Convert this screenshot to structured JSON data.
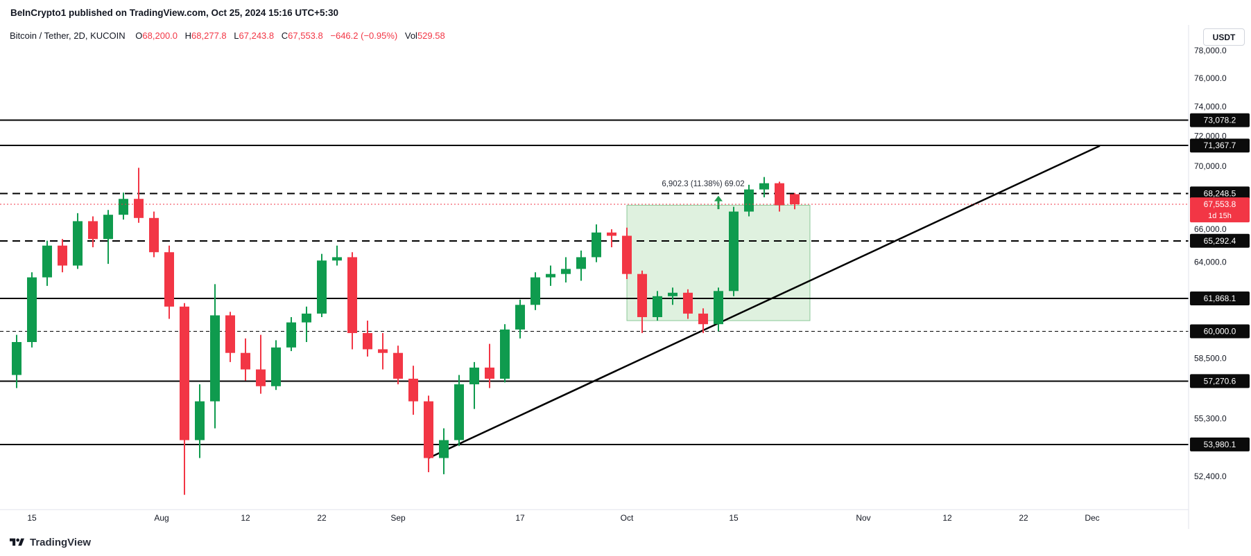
{
  "header": {
    "publish_line": "BeInCrypto1 published on TradingView.com, Oct 25, 2024 15:16 UTC+5:30"
  },
  "legend": {
    "symbol": "Bitcoin / Tether, 2D, KUCOIN",
    "o_label": "O",
    "o": "68,200.0",
    "h_label": "H",
    "h": "68,277.8",
    "l_label": "L",
    "l": "67,243.8",
    "c_label": "C",
    "c": "67,553.8",
    "change": "−646.2 (−0.95%)",
    "vol_label": "Vol",
    "vol": "529.58"
  },
  "footer": {
    "brand": "TradingView"
  },
  "colors": {
    "up": "#0f9b4e",
    "down": "#f23645",
    "level_line": "#000000",
    "box_fill": "rgba(76,175,80,0.18)",
    "box_stroke": "rgba(56,160,80,0.55)",
    "arrow": "#1e9e4e",
    "badge_bg": "#0b0b0b",
    "badge_text": "#ffffff",
    "axis_text": "#131722",
    "separator": "#e0e3eb",
    "annotation_text": "#2a2e39"
  },
  "chart_data": {
    "type": "candlestick",
    "title": "Bitcoin / Tether, 2D, KUCOIN",
    "interval": "2D",
    "exchange": "KUCOIN",
    "y_axis": {
      "currency": "USDT",
      "scale": "log",
      "labels": [
        {
          "text": "78,000.0",
          "price": 78000
        },
        {
          "text": "76,000.0",
          "price": 76000
        },
        {
          "text": "74,000.0",
          "price": 74000
        },
        {
          "text": "72,000.0",
          "price": 72000
        },
        {
          "text": "70,000.0",
          "price": 70000
        },
        {
          "text": "66,000.0",
          "price": 66000
        },
        {
          "text": "64,000.0",
          "price": 64000
        },
        {
          "text": "58,500.0",
          "price": 58500
        },
        {
          "text": "55,300.0",
          "price": 55300
        },
        {
          "text": "52,400.0",
          "price": 52400
        }
      ],
      "badges": [
        {
          "text": "73,078.2",
          "price": 73078.2
        },
        {
          "text": "71,367.7",
          "price": 71367.7
        },
        {
          "text": "68,248.5",
          "price": 68248.5
        },
        {
          "text": "65,292.4",
          "price": 65292.4
        },
        {
          "text": "61,868.1",
          "price": 61868.1
        },
        {
          "text": "60,000.0",
          "price": 60000
        },
        {
          "text": "57,270.6",
          "price": 57270.6
        },
        {
          "text": "53,980.1",
          "price": 53980.1
        }
      ],
      "current_badge": {
        "text": "67,553.8",
        "countdown": "1d 15h",
        "price": 67553.8
      }
    },
    "x_axis": {
      "labels": [
        {
          "text": "15",
          "day": 0
        },
        {
          "text": "Aug",
          "day": 17
        },
        {
          "text": "12",
          "day": 28
        },
        {
          "text": "22",
          "day": 38
        },
        {
          "text": "Sep",
          "day": 48
        },
        {
          "text": "17",
          "day": 64
        },
        {
          "text": "Oct",
          "day": 78
        },
        {
          "text": "15",
          "day": 92
        },
        {
          "text": "Nov",
          "day": 109
        },
        {
          "text": "12",
          "day": 120
        },
        {
          "text": "22",
          "day": 130
        },
        {
          "text": "Dec",
          "day": 139
        }
      ]
    },
    "levels": {
      "solid": [
        73078.2,
        71367.7,
        61868.1,
        57270.6,
        53980.1
      ],
      "dashed": [
        68248.5,
        65292.4
      ],
      "thin_dashed": [
        60000
      ],
      "current_price": 67553.8
    },
    "trendline": {
      "from": {
        "day": 52,
        "price": 53300
      },
      "to": {
        "day": 140,
        "price": 71350
      }
    },
    "highlight_box": {
      "from_day": 78,
      "to_day": 102,
      "top_price": 67500,
      "bottom_price": 60600
    },
    "annotation": {
      "text": "6,902.3 (11.38%) 69.02",
      "day": 88,
      "price": 68700
    },
    "arrow": {
      "day": 90,
      "from_price": 67250,
      "to_price": 68100
    },
    "candles": [
      [
        -2,
        57600,
        59800,
        56900,
        59400
      ],
      [
        0,
        59400,
        63400,
        59100,
        63100
      ],
      [
        2,
        63100,
        65300,
        62600,
        65000
      ],
      [
        4,
        65000,
        65400,
        63400,
        63800
      ],
      [
        6,
        63800,
        67000,
        63600,
        66500
      ],
      [
        8,
        66500,
        66800,
        64900,
        65400
      ],
      [
        10,
        65400,
        67200,
        63900,
        66900
      ],
      [
        12,
        66900,
        68300,
        66600,
        67900
      ],
      [
        14,
        67900,
        69900,
        66400,
        66700
      ],
      [
        16,
        66700,
        67100,
        64300,
        64600
      ],
      [
        18,
        64600,
        65000,
        60700,
        61400
      ],
      [
        20,
        61400,
        61600,
        51500,
        54200
      ],
      [
        22,
        54200,
        57100,
        53300,
        56200
      ],
      [
        24,
        56200,
        62700,
        54800,
        60900
      ],
      [
        26,
        60900,
        61100,
        58300,
        58800
      ],
      [
        28,
        58800,
        59600,
        57300,
        57900
      ],
      [
        30,
        57900,
        59800,
        56600,
        57000
      ],
      [
        32,
        57000,
        59500,
        56800,
        59100
      ],
      [
        34,
        59100,
        60800,
        58900,
        60500
      ],
      [
        36,
        60500,
        61400,
        59400,
        61000
      ],
      [
        38,
        61000,
        64500,
        60800,
        64100
      ],
      [
        40,
        64100,
        65000,
        63800,
        64300
      ],
      [
        42,
        64300,
        64600,
        59000,
        59900
      ],
      [
        44,
        59900,
        60600,
        58600,
        59000
      ],
      [
        46,
        59000,
        59900,
        57900,
        58800
      ],
      [
        48,
        58800,
        59200,
        57100,
        57400
      ],
      [
        50,
        57400,
        58100,
        55500,
        56200
      ],
      [
        52,
        56200,
        56500,
        52600,
        53300
      ],
      [
        54,
        53300,
        54800,
        52500,
        54200
      ],
      [
        56,
        54200,
        57600,
        53900,
        57100
      ],
      [
        58,
        57100,
        58300,
        55800,
        58000
      ],
      [
        60,
        58000,
        59300,
        56900,
        57400
      ],
      [
        62,
        57400,
        60400,
        57200,
        60100
      ],
      [
        64,
        60100,
        61800,
        59600,
        61500
      ],
      [
        66,
        61500,
        63400,
        61200,
        63100
      ],
      [
        68,
        63100,
        63800,
        62600,
        63300
      ],
      [
        70,
        63300,
        64300,
        62800,
        63600
      ],
      [
        72,
        63600,
        64700,
        62900,
        64300
      ],
      [
        74,
        64300,
        66300,
        64000,
        65800
      ],
      [
        76,
        65800,
        66000,
        64900,
        65600
      ],
      [
        78,
        65600,
        66100,
        63000,
        63300
      ],
      [
        80,
        63300,
        63500,
        59900,
        60800
      ],
      [
        82,
        60800,
        62300,
        60600,
        62000
      ],
      [
        84,
        62000,
        62500,
        61500,
        62200
      ],
      [
        86,
        62200,
        62400,
        60700,
        61000
      ],
      [
        88,
        61000,
        61300,
        59900,
        60400
      ],
      [
        90,
        60400,
        62500,
        60000,
        62300
      ],
      [
        92,
        62300,
        67400,
        62000,
        67100
      ],
      [
        94,
        67100,
        68800,
        66800,
        68500
      ],
      [
        96,
        68500,
        69300,
        68000,
        68900
      ],
      [
        98,
        68900,
        69000,
        67100,
        67500
      ],
      [
        100,
        68200,
        68277.8,
        67243.8,
        67553.8
      ]
    ]
  }
}
